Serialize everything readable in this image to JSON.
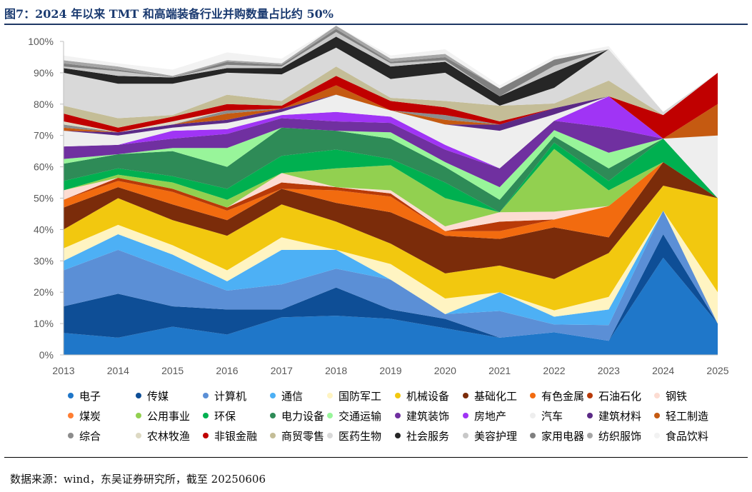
{
  "title": "图7：2024 年以来 TMT 和高端装备行业并购数量占比约 50%",
  "source": "数据来源：wind，东吴证券研究所，截至 20250606",
  "chart_data": {
    "type": "area",
    "stacked": true,
    "x": [
      "2013",
      "2014",
      "2015",
      "2016",
      "2017",
      "2018",
      "2019",
      "2020",
      "2021",
      "2022",
      "2023",
      "2024",
      "2025"
    ],
    "ylim": [
      0,
      100
    ],
    "yticks": [
      "0%",
      "10%",
      "20%",
      "30%",
      "40%",
      "50%",
      "60%",
      "70%",
      "80%",
      "90%",
      "100%"
    ],
    "grid": false,
    "legend_position": "bottom",
    "series": [
      {
        "name": "电子",
        "color": "#1f77c9",
        "values": [
          7,
          5.5,
          9,
          6.5,
          12,
          12.5,
          11.5,
          8.5,
          5.5,
          7.2,
          4.5,
          31,
          10
        ]
      },
      {
        "name": "传媒",
        "color": "#0e4e96",
        "values": [
          8.5,
          14,
          6.5,
          8,
          2.5,
          9,
          3,
          3,
          0,
          0,
          0,
          7.5,
          0
        ]
      },
      {
        "name": "计算机",
        "color": "#5b8fd6",
        "values": [
          11.5,
          14,
          11.5,
          6,
          8,
          6,
          9.5,
          1.5,
          8.5,
          2.5,
          5,
          7.5,
          0
        ]
      },
      {
        "name": "通信",
        "color": "#4db0f5",
        "values": [
          3,
          5,
          5,
          3,
          11,
          6,
          0,
          0,
          6,
          2.5,
          5,
          0,
          0
        ]
      },
      {
        "name": "国防军工",
        "color": "#fff4c2",
        "values": [
          4,
          3,
          3,
          3.5,
          4,
          0,
          5,
          5,
          0,
          2,
          4,
          0,
          10
        ]
      },
      {
        "name": "机械设备",
        "color": "#f2c80f",
        "values": [
          6,
          8.5,
          8,
          11,
          10.5,
          9,
          6.5,
          8,
          8.5,
          10,
          14,
          8,
          30
        ]
      },
      {
        "name": "基础化工",
        "color": "#7b2c0a",
        "values": [
          7,
          3.5,
          5,
          5,
          5,
          6,
          10,
          12,
          8.5,
          16.5,
          5,
          7.5,
          0
        ]
      },
      {
        "name": "有色金属",
        "color": "#f26b0f",
        "values": [
          2.5,
          2,
          4,
          3,
          0,
          4,
          5,
          1.5,
          2.5,
          2.5,
          10,
          0,
          0
        ]
      },
      {
        "name": "石油石化",
        "color": "#b83a08",
        "values": [
          0,
          1,
          1,
          1,
          2,
          1,
          1,
          0,
          3,
          0,
          0,
          0,
          0
        ]
      },
      {
        "name": "钢铁",
        "color": "#fcdcd2",
        "values": [
          3,
          0,
          0,
          0,
          3,
          0,
          1,
          1.5,
          3,
          2.5,
          0,
          0,
          0
        ]
      },
      {
        "name": "煤炭",
        "color": "#ff7e33",
        "values": [
          0,
          0,
          0,
          0,
          0,
          0,
          0,
          0,
          0,
          0,
          0,
          0,
          0
        ]
      },
      {
        "name": "公用事业",
        "color": "#92d050",
        "values": [
          0,
          1,
          2,
          2.5,
          0,
          6,
          8,
          9,
          0,
          20,
          5,
          0,
          0
        ]
      },
      {
        "name": "环保",
        "color": "#00b050",
        "values": [
          3,
          2,
          2,
          3.5,
          5.5,
          6,
          2,
          5,
          0,
          2,
          3,
          7.5,
          0
        ]
      },
      {
        "name": "电力设备",
        "color": "#2e8b57",
        "values": [
          5.5,
          4.5,
          8,
          7,
          9,
          6,
          6.5,
          5,
          4,
          2,
          4,
          0,
          0
        ]
      },
      {
        "name": "交通运输",
        "color": "#98f59a",
        "values": [
          1.5,
          0,
          1,
          6,
          0,
          0,
          2,
          1.5,
          4,
          2,
          5,
          0,
          0
        ]
      },
      {
        "name": "建筑装饰",
        "color": "#7030a0",
        "values": [
          4,
          3,
          3,
          4.5,
          3,
          3,
          3,
          4,
          6,
          3,
          8,
          0,
          0
        ]
      },
      {
        "name": "房地产",
        "color": "#a034f5",
        "values": [
          0,
          0,
          2.5,
          1.5,
          1,
          3,
          2,
          1.5,
          0,
          0,
          10,
          0,
          0
        ]
      },
      {
        "name": "汽车",
        "color": "#eeeeee",
        "values": [
          5,
          3,
          1,
          2,
          1,
          5.5,
          2,
          6.5,
          12,
          2,
          0,
          0,
          20
        ]
      },
      {
        "name": "建筑材料",
        "color": "#5b2a86",
        "values": [
          0,
          1,
          1,
          1,
          1,
          0,
          0,
          0,
          2,
          2,
          0,
          0,
          0
        ]
      },
      {
        "name": "轻工制造",
        "color": "#c55a11",
        "values": [
          1,
          0,
          0,
          2,
          0,
          3,
          0,
          1.5,
          0,
          0,
          0,
          0,
          10
        ]
      },
      {
        "name": "综合",
        "color": "#8c8c8c",
        "values": [
          1,
          0,
          0,
          1,
          0,
          0,
          0,
          1.5,
          0,
          0,
          0,
          0,
          0
        ]
      },
      {
        "name": "农林牧渔",
        "color": "#ddd9c3",
        "values": [
          1,
          0,
          1,
          0,
          0,
          0,
          0,
          0,
          0,
          0,
          0,
          0,
          0
        ]
      },
      {
        "name": "非银金融",
        "color": "#c00000",
        "values": [
          2.5,
          1.5,
          1.5,
          2,
          1,
          3,
          3,
          2.5,
          1,
          0,
          0,
          7.5,
          10
        ]
      },
      {
        "name": "商贸零售",
        "color": "#c4bd97",
        "values": [
          2.5,
          3,
          0.5,
          3,
          1.5,
          3,
          1,
          2,
          5,
          1.5,
          5,
          0,
          0
        ]
      },
      {
        "name": "医药生物",
        "color": "#d9d9d9",
        "values": [
          10.5,
          11,
          10,
          7,
          8.5,
          6,
          6,
          9,
          0,
          5,
          10,
          1,
          0
        ]
      },
      {
        "name": "社会服务",
        "color": "#262626",
        "values": [
          1.5,
          2.5,
          2,
          1.5,
          2,
          3.5,
          4,
          3.5,
          3,
          5,
          0,
          0,
          0
        ]
      },
      {
        "name": "美容护理",
        "color": "#c8c8c8",
        "values": [
          0.5,
          1.5,
          0,
          1,
          0.5,
          1.5,
          1,
          0.5,
          0,
          2,
          0,
          0,
          0
        ]
      },
      {
        "name": "家用电器",
        "color": "#7f7f7f",
        "values": [
          1,
          0.5,
          0,
          1,
          0.5,
          1,
          0.5,
          1,
          2.5,
          2,
          0,
          0,
          0
        ]
      },
      {
        "name": "纺织服饰",
        "color": "#a6a6a6",
        "values": [
          1,
          1,
          0.5,
          0.5,
          0.5,
          1,
          1,
          1,
          0,
          0,
          0,
          0,
          0
        ]
      },
      {
        "name": "食品饮料",
        "color": "#f2f2f2",
        "values": [
          1.5,
          1,
          2,
          2.5,
          1.5,
          0,
          1,
          1.5,
          1,
          1,
          1,
          0,
          0
        ]
      }
    ]
  }
}
